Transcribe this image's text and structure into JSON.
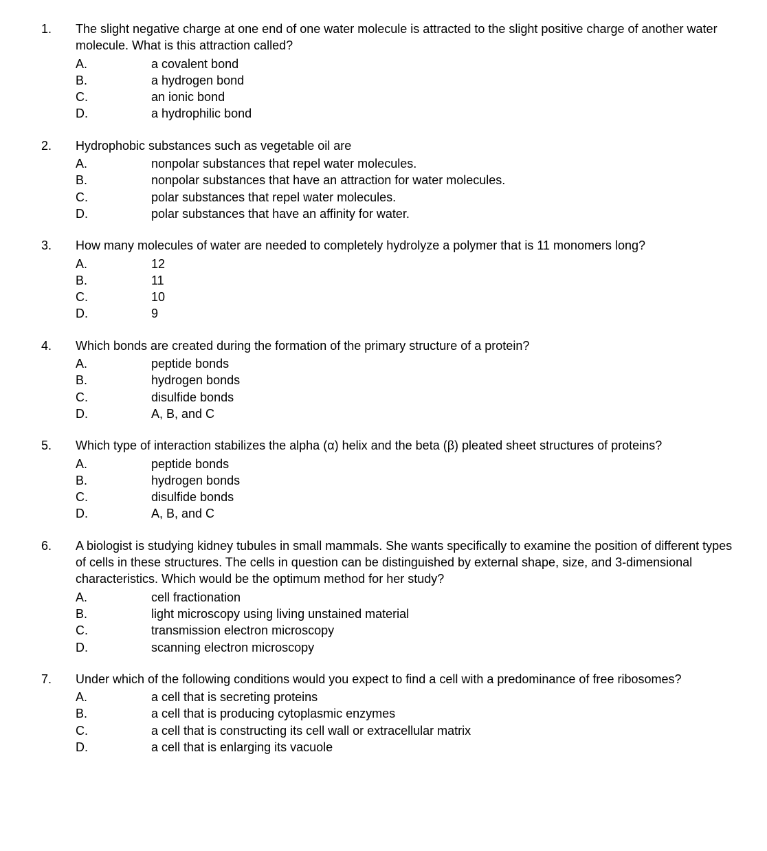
{
  "questions": [
    {
      "number": "1.",
      "stem": "The slight negative charge at one end of one water molecule is attracted to the slight positive charge of another water molecule. What is this attraction called?",
      "options": [
        {
          "letter": "A.",
          "text": "a covalent bond"
        },
        {
          "letter": "B.",
          "text": "a hydrogen bond"
        },
        {
          "letter": "C.",
          "text": "an ionic bond"
        },
        {
          "letter": "D.",
          "text": "a hydrophilic bond"
        }
      ]
    },
    {
      "number": "2.",
      "stem": "Hydrophobic substances such as vegetable oil are",
      "options": [
        {
          "letter": "A.",
          "text": "nonpolar substances that repel water molecules."
        },
        {
          "letter": "B.",
          "text": "nonpolar substances that have an attraction for water molecules."
        },
        {
          "letter": "C.",
          "text": "polar substances that repel water molecules."
        },
        {
          "letter": "D.",
          "text": "polar substances that have an affinity for water."
        }
      ]
    },
    {
      "number": "3.",
      "stem": "How many molecules of water are needed to completely hydrolyze a polymer that is 11 monomers long?",
      "options": [
        {
          "letter": "A.",
          "text": "12"
        },
        {
          "letter": "B.",
          "text": "11"
        },
        {
          "letter": "C.",
          "text": "10"
        },
        {
          "letter": "D.",
          "text": "9"
        }
      ]
    },
    {
      "number": "4.",
      "stem": "Which bonds are created during the formation of the primary structure of a protein?",
      "options": [
        {
          "letter": "A.",
          "text": "peptide bonds"
        },
        {
          "letter": "B.",
          "text": "hydrogen bonds"
        },
        {
          "letter": "C.",
          "text": "disulfide bonds"
        },
        {
          "letter": "D.",
          "text": "A, B, and C"
        }
      ]
    },
    {
      "number": "5.",
      "stem": "Which type of interaction stabilizes the alpha (α) helix and the beta (β) pleated sheet structures of proteins?",
      "options": [
        {
          "letter": "A.",
          "text": "peptide bonds"
        },
        {
          "letter": "B.",
          "text": "hydrogen bonds"
        },
        {
          "letter": "C.",
          "text": "disulfide bonds"
        },
        {
          "letter": "D.",
          "text": "A, B, and C"
        }
      ]
    },
    {
      "number": "6.",
      "stem": "A biologist is studying kidney tubules in small mammals. She wants specifically to examine the position of different types of cells in these structures. The cells in question can be distinguished by external shape, size, and 3-dimensional characteristics. Which would be the optimum method for her study?",
      "options": [
        {
          "letter": "A.",
          "text": "cell fractionation"
        },
        {
          "letter": "B.",
          "text": "light microscopy using living unstained material"
        },
        {
          "letter": "C.",
          "text": "transmission electron microscopy"
        },
        {
          "letter": "D.",
          "text": "scanning electron microscopy"
        }
      ]
    },
    {
      "number": "7.",
      "stem": "Under which of the following conditions would you expect to find a cell with a predominance of free ribosomes?",
      "options": [
        {
          "letter": "A.",
          "text": "a cell that is secreting proteins"
        },
        {
          "letter": "B.",
          "text": "a cell that is producing cytoplasmic enzymes"
        },
        {
          "letter": "C.",
          "text": "a cell that is constructing its cell wall or extracellular matrix"
        },
        {
          "letter": "D.",
          "text": "a cell that is enlarging its vacuole"
        }
      ]
    }
  ]
}
